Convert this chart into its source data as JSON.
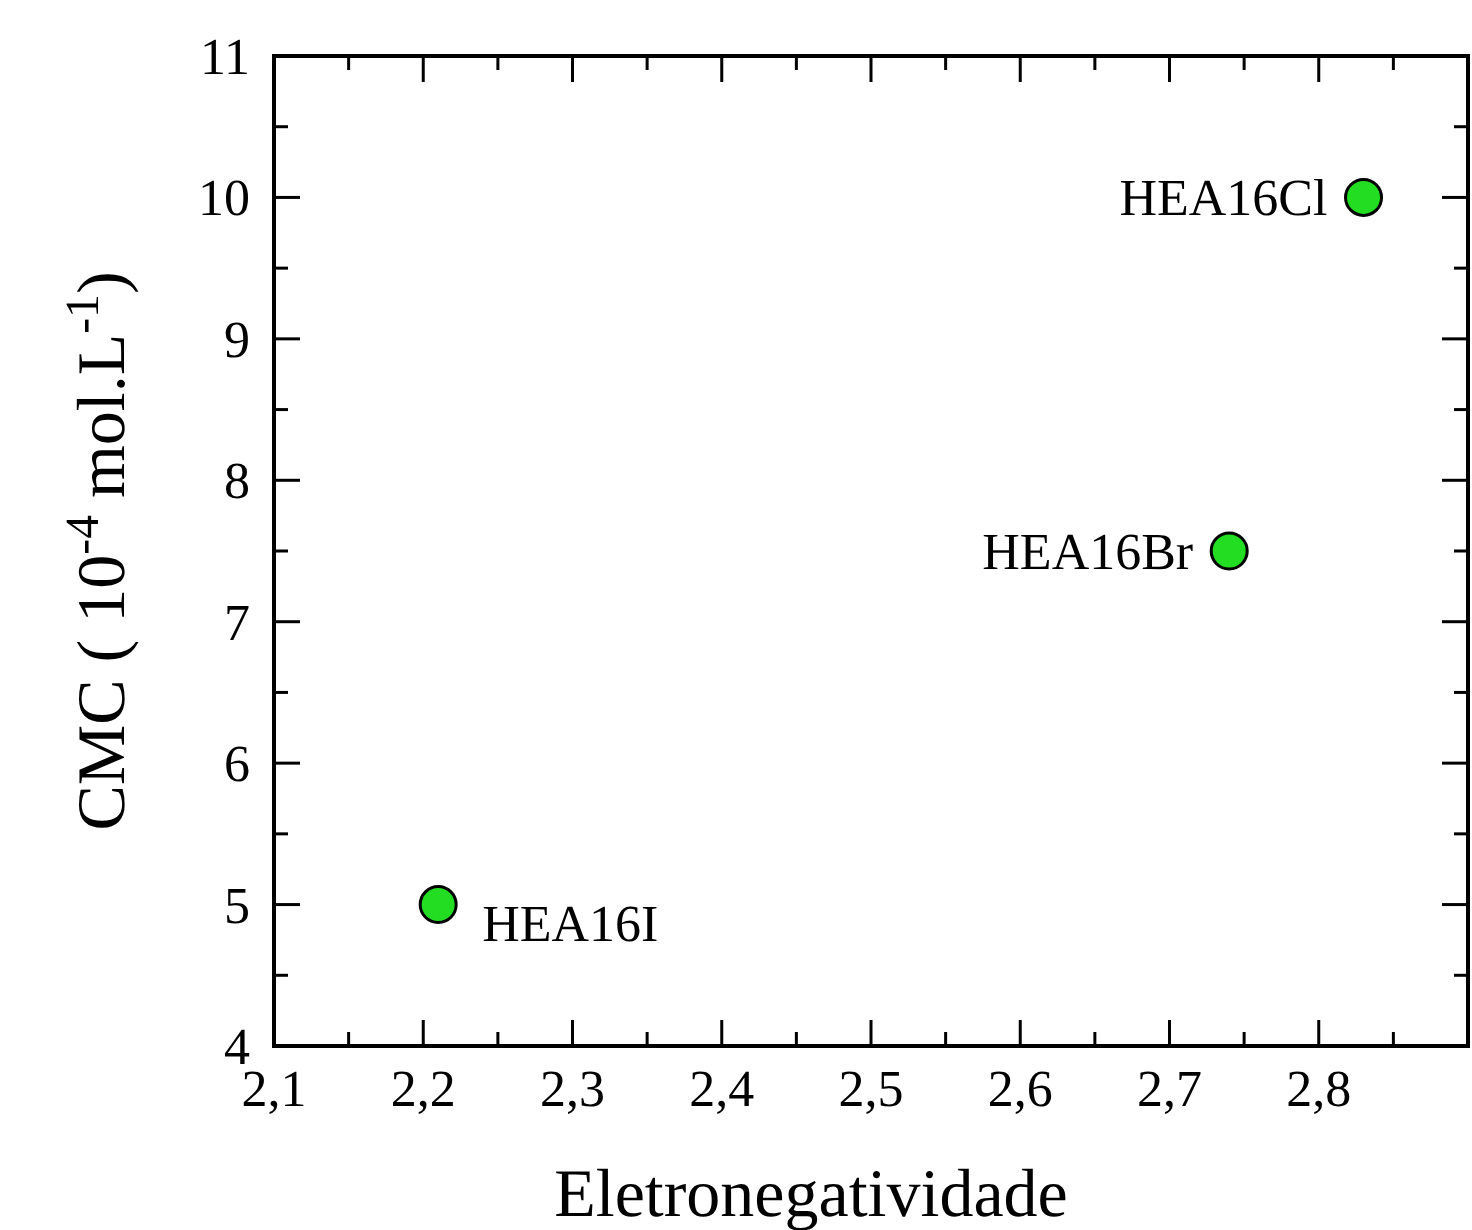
{
  "chart_data": {
    "type": "scatter",
    "xlabel": "Eletronegatividade",
    "ylabel": "CMC ( 10$^{-4}$ mol.L$^{-1}$)",
    "x": [
      2.21,
      2.74,
      2.83
    ],
    "series": [
      {
        "color": "#22dd22",
        "values": [
          5,
          7.5,
          10
        ]
      }
    ],
    "marker": "circle",
    "xlim": [
      2.1,
      2.9
    ],
    "xticks": [
      {
        "value": 2.1,
        "label": "2,1"
      },
      {
        "value": 2.15,
        "label": null
      },
      {
        "value": 2.2,
        "label": "2,2"
      },
      {
        "value": 2.25,
        "label": null
      },
      {
        "value": 2.3,
        "label": "2,3"
      },
      {
        "value": 2.35,
        "label": null
      },
      {
        "value": 2.4,
        "label": "2,4"
      },
      {
        "value": 2.45,
        "label": null
      },
      {
        "value": 2.5,
        "label": "2,5"
      },
      {
        "value": 2.55,
        "label": null
      },
      {
        "value": 2.6,
        "label": "2,6"
      },
      {
        "value": 2.65,
        "label": null
      },
      {
        "value": 2.7,
        "label": "2,7"
      },
      {
        "value": 2.75,
        "label": null
      },
      {
        "value": 2.8,
        "label": "2,8"
      },
      {
        "value": 2.85,
        "label": null
      }
    ],
    "ylim": [
      4,
      11
    ],
    "yticks": [
      4,
      {
        "value": 4.5,
        "label": null
      },
      5,
      {
        "value": 5.5,
        "label": null
      },
      6,
      {
        "value": 6.5,
        "label": null
      },
      7,
      {
        "value": 7.5,
        "label": null
      },
      8,
      {
        "value": 8.5,
        "label": null
      },
      9,
      {
        "value": 9.5,
        "label": null
      },
      10,
      {
        "value": 10.5,
        "label": null
      },
      11
    ],
    "annotations": [
      {
        "text": "HEA16I",
        "x": 2.21,
        "y": 5
      },
      {
        "text": "HEA16Br",
        "x": 2.74,
        "y": 7.5
      },
      {
        "text": "HEA16Cl",
        "x": 2.83,
        "y": 10
      }
    ]
  }
}
